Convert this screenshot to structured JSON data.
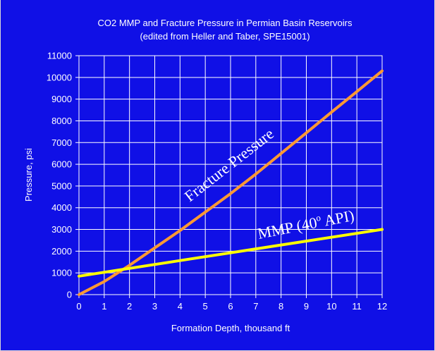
{
  "chart_data": {
    "type": "line",
    "title": "CO2 MMP and Fracture Pressure in Permian Basin Reservoirs",
    "subtitle": "(edited from Heller and Taber, SPE15001)",
    "xlabel": "Formation Depth, thousand ft",
    "ylabel": "Pressure, psi",
    "xlim": [
      0,
      12
    ],
    "ylim": [
      0,
      11000
    ],
    "x_ticks": [
      "0",
      "1",
      "2",
      "3",
      "4",
      "5",
      "6",
      "7",
      "8",
      "9",
      "10",
      "11",
      "12"
    ],
    "y_ticks": [
      "0",
      "1000",
      "2000",
      "3000",
      "4000",
      "5000",
      "6000",
      "7000",
      "8000",
      "9000",
      "10000",
      "11000"
    ],
    "grid": true,
    "series": [
      {
        "name": "Fracture Pressure",
        "color": "#ff9933",
        "points": [
          [
            0,
            0
          ],
          [
            1,
            600
          ],
          [
            2,
            1350
          ],
          [
            3,
            2150
          ],
          [
            4,
            2950
          ],
          [
            5,
            3800
          ],
          [
            6,
            4650
          ],
          [
            7,
            5550
          ],
          [
            8,
            6500
          ],
          [
            9,
            7450
          ],
          [
            10,
            8400
          ],
          [
            11,
            9350
          ],
          [
            12,
            10300
          ]
        ]
      },
      {
        "name": "MMP (40o API)",
        "color": "#ffff00",
        "points": [
          [
            0,
            850
          ],
          [
            12,
            3000
          ]
        ]
      }
    ],
    "annotations": [
      {
        "text": "Fracture Pressure"
      },
      {
        "text": "MMP (40",
        "sup": "o",
        "tail": " API)"
      }
    ]
  }
}
